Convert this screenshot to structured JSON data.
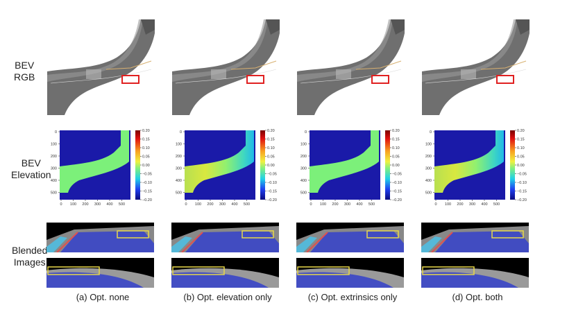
{
  "row_labels": {
    "bev_rgb": [
      "BEV",
      "RGB"
    ],
    "bev_elevation": [
      "BEV",
      "Elevation"
    ],
    "blended": [
      "Blended",
      "Images"
    ]
  },
  "columns": [
    {
      "caption": "(a) Opt. none",
      "elevation_variant": "flat"
    },
    {
      "caption": "(b) Opt. elevation only",
      "elevation_variant": "varied"
    },
    {
      "caption": "(c) Opt. extrinsics only",
      "elevation_variant": "flat"
    },
    {
      "caption": "(d) Opt. both",
      "elevation_variant": "varied"
    }
  ],
  "elevation_axis": {
    "x_ticks": [
      "0",
      "100",
      "200",
      "300",
      "400",
      "500"
    ],
    "y_ticks": [
      "0",
      "100",
      "200",
      "300",
      "400",
      "500"
    ]
  },
  "colorbar": {
    "ticks": [
      "0.20",
      "0.15",
      "0.10",
      "0.05",
      "0.00",
      "−0.05",
      "−0.10",
      "−0.15",
      "−0.20"
    ]
  },
  "colors": {
    "road_gray": "#7a7a7a",
    "highlight_red": "#e02020",
    "highlight_yellow": "#e8d84a",
    "elevation_background": "#1a1aa8",
    "elevation_flat": "#7cf07a",
    "blend_blue": "#3a46c8"
  }
}
